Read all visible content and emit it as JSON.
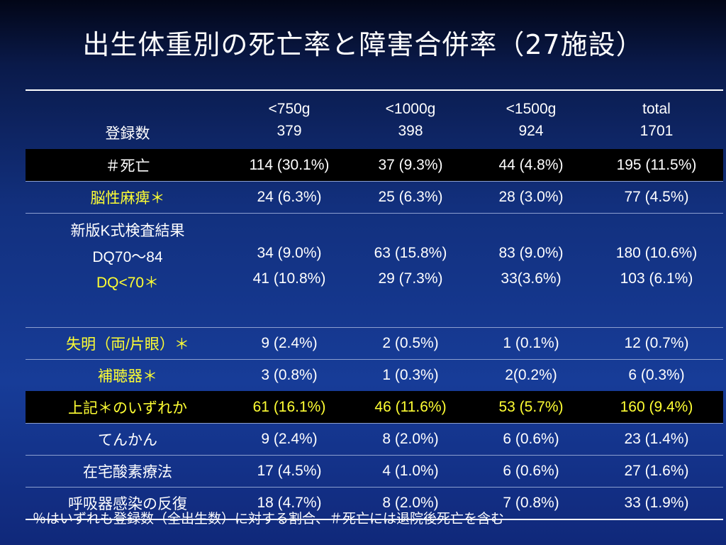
{
  "slide": {
    "title": "出生体重別の死亡率と障害合併率（27施設）",
    "footnote": "％はいずれも登録数（全出生数）に対する割合、＃死亡には退院後死亡を含む"
  },
  "table": {
    "header": {
      "row_label": "登録数",
      "columns": [
        {
          "label": "<750g",
          "count": "379"
        },
        {
          "label": "<1000g",
          "count": "398"
        },
        {
          "label": "<1500g",
          "count": "924"
        },
        {
          "label": "total",
          "count": "1701"
        }
      ]
    },
    "rows": {
      "death": {
        "label": "＃死亡",
        "values": [
          "114 (30.1%)",
          "37 (9.3%)",
          "44 (4.8%)",
          "195 (11.5%)"
        ]
      },
      "cp": {
        "label": "脳性麻痺＊",
        "values": [
          "24 (6.3%)",
          "25 (6.3%)",
          "28 (3.0%)",
          "77 (4.5%)"
        ]
      },
      "kshiki": {
        "label": "新版K式検査結果",
        "dq1": {
          "label": "DQ70〜84",
          "values": [
            "34 (9.0%)",
            "63 (15.8%)",
            "83 (9.0%)",
            "180 (10.6%)"
          ]
        },
        "dq2": {
          "label": "DQ<70＊",
          "values": [
            "41 (10.8%)",
            "29 (7.3%)",
            "33(3.6%)",
            "103 (6.1%)"
          ]
        }
      },
      "blind": {
        "label": "失明（両/片眼）＊",
        "values": [
          "9 (2.4%)",
          "2 (0.5%)",
          "1 (0.1%)",
          "12 (0.7%)"
        ]
      },
      "hearing": {
        "label": "補聴器＊",
        "values": [
          "3 (0.8%)",
          "1 (0.3%)",
          "2(0.2%)",
          "6 (0.3%)"
        ]
      },
      "any": {
        "label": "上記＊のいずれか",
        "values": [
          "61 (16.1%)",
          "46 (11.6%)",
          "53 (5.7%)",
          "160 (9.4%)"
        ]
      },
      "epilepsy": {
        "label": "てんかん",
        "values": [
          "9 (2.4%)",
          "8 (2.0%)",
          "6 (0.6%)",
          "23 (1.4%)"
        ]
      },
      "home_o2": {
        "label": "在宅酸素療法",
        "values": [
          "17 (4.5%)",
          "4 (1.0%)",
          "6 (0.6%)",
          "27 (1.6%)"
        ]
      },
      "respiratory": {
        "label": "呼吸器感染の反復",
        "values": [
          "18 (4.7%)",
          "8 (2.0%)",
          "7 (0.8%)",
          "33 (1.9%)"
        ]
      }
    }
  },
  "colors": {
    "highlight_text": "#ffff33",
    "dark_row_bg": "#000000",
    "background": "#173c98"
  }
}
